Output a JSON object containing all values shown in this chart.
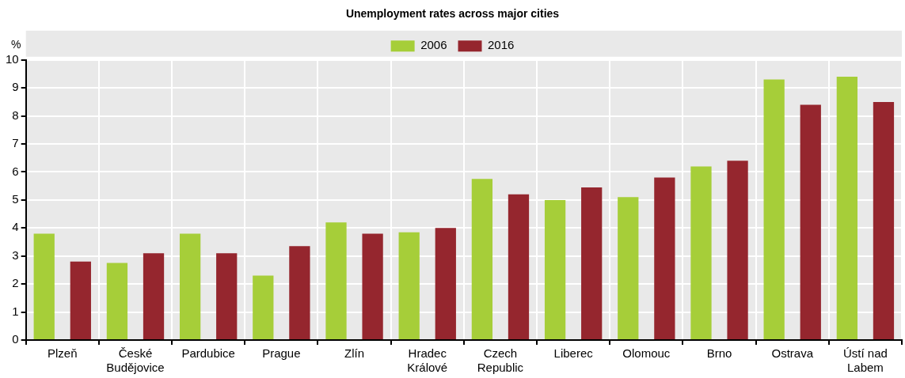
{
  "chart_data": {
    "type": "bar",
    "title": "Unemployment rates across major cities",
    "ylabel": "%",
    "categories": [
      "Plzeň",
      "České Budějovice",
      "Pardubice",
      "Prague",
      "Zlín",
      "Hradec Králové",
      "Czech Republic",
      "Liberec",
      "Olomouc",
      "Brno",
      "Ostrava",
      "Ústí nad Labem"
    ],
    "series": [
      {
        "name": "2006",
        "color": "#a6ce39",
        "values": [
          3.8,
          2.75,
          3.8,
          2.3,
          4.2,
          3.85,
          5.75,
          5.0,
          5.1,
          6.2,
          9.3,
          9.4
        ]
      },
      {
        "name": "2016",
        "color": "#95262e",
        "values": [
          2.8,
          3.1,
          3.1,
          3.35,
          3.8,
          4.0,
          5.2,
          5.45,
          5.8,
          6.4,
          8.4,
          8.5
        ]
      }
    ],
    "ylim": [
      0,
      10
    ],
    "yticks": [
      0,
      1,
      2,
      3,
      4,
      5,
      6,
      7,
      8,
      9,
      10
    ],
    "grid": true,
    "legend": "top"
  }
}
